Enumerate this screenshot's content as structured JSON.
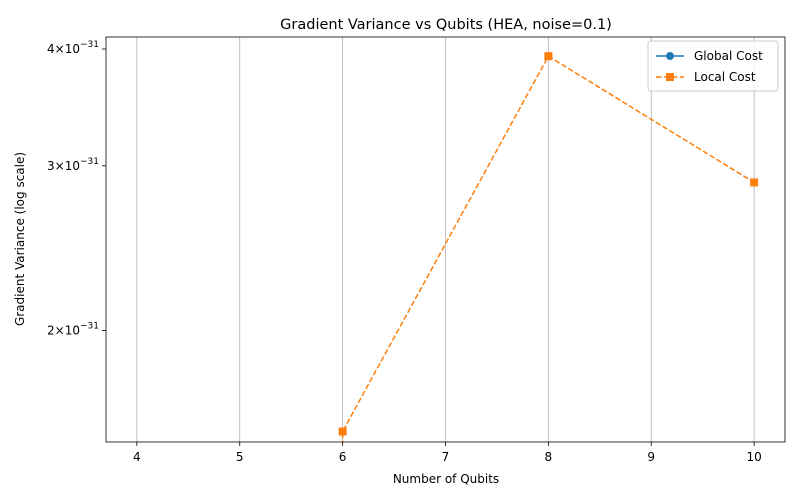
{
  "chart_data": {
    "type": "line",
    "title": "Gradient Variance vs Qubits (HEA, noise=0.1)",
    "xlabel": "Number of Qubits",
    "ylabel": "Gradient Variance (log scale)",
    "y_scale": "log",
    "xlim": [
      3.7,
      10.3
    ],
    "ylim": [
      1.52e-31,
      4.12e-31
    ],
    "x_ticks": [
      4,
      5,
      6,
      7,
      8,
      9,
      10
    ],
    "x_tick_labels": [
      "4",
      "5",
      "6",
      "7",
      "8",
      "9",
      "10"
    ],
    "y_ticks": [
      2e-31,
      3e-31,
      4e-31
    ],
    "y_tick_labels": [
      {
        "mantissa": "2",
        "base": "10",
        "exponent": "−31"
      },
      {
        "mantissa": "3",
        "base": "10",
        "exponent": "−31"
      },
      {
        "mantissa": "4",
        "base": "10",
        "exponent": "−31"
      }
    ],
    "grid": {
      "x": true,
      "y": false
    },
    "legend_position": "top-right",
    "series": [
      {
        "name": "Global Cost",
        "color": "#1f77b4",
        "marker": "circle",
        "line_style": "solid",
        "x": [],
        "y": []
      },
      {
        "name": "Local Cost",
        "color": "#ff7f0e",
        "marker": "square",
        "line_style": "dashed",
        "x": [
          6,
          8,
          10
        ],
        "y": [
          1.56e-31,
          3.93e-31,
          2.88e-31
        ],
        "extends_below_axis_at_start": true
      }
    ]
  }
}
